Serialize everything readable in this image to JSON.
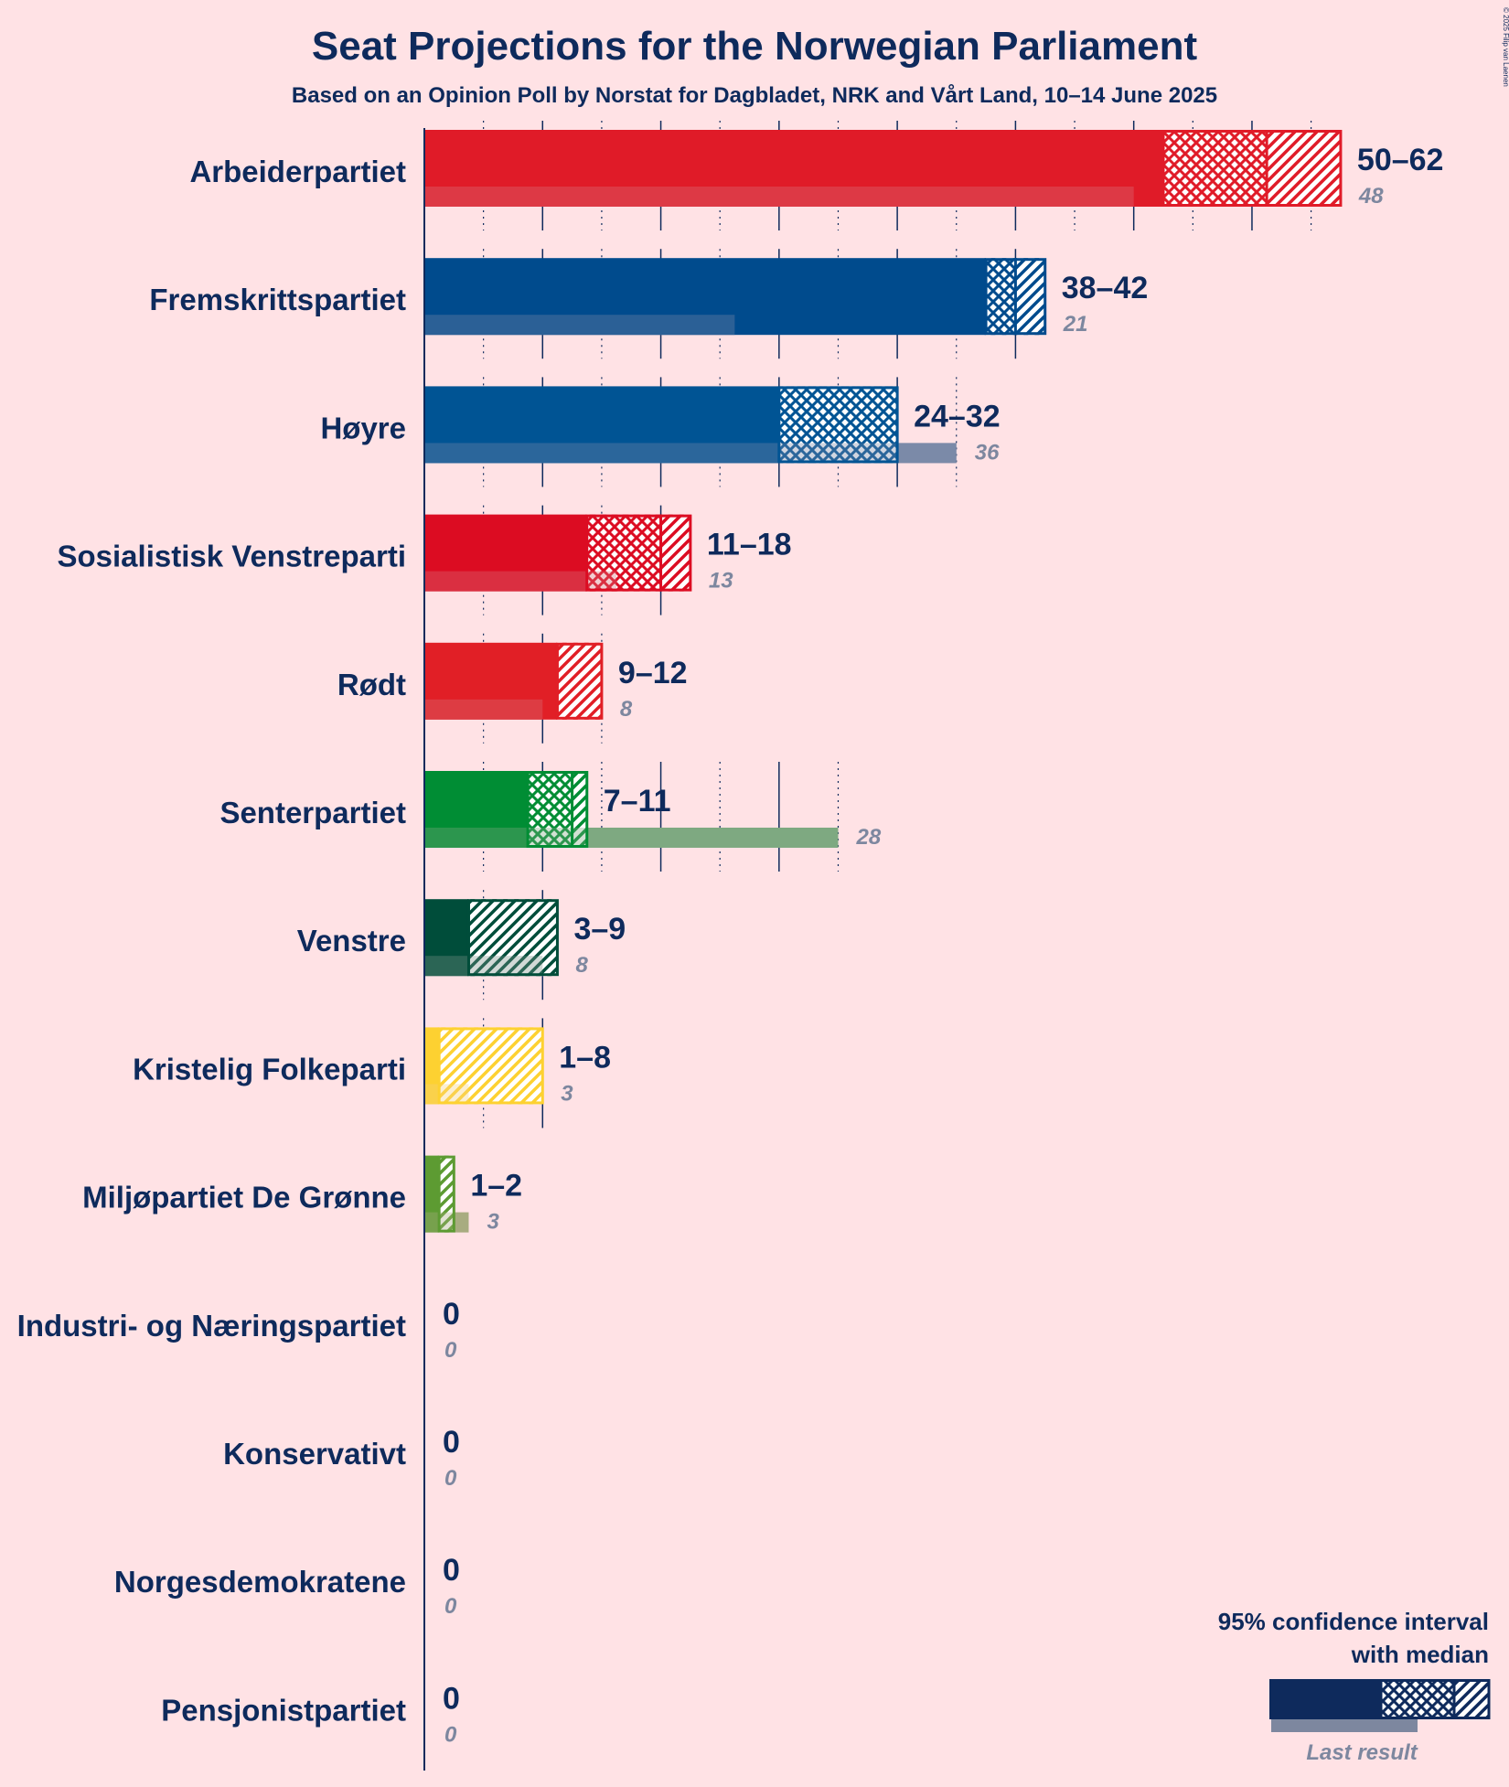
{
  "chart_data": {
    "type": "bar",
    "title": "Seat Projections for the Norwegian Parliament",
    "subtitle": "Based on an Opinion Poll by Norstat for Dagbladet, NRK and Vårt Land, 10–14 June 2025",
    "credit": "© 2025 Filip van Laenen",
    "x_unit": "seats",
    "xlim": [
      0,
      62
    ],
    "parties": [
      {
        "name": "Arbeiderpartiet",
        "color": "#e01b28",
        "last_color": "#d7747a",
        "low": 50,
        "median": 57,
        "high": 62,
        "range_label": "50–62",
        "last": 48,
        "last_label": "48"
      },
      {
        "name": "Fremskrittspartiet",
        "color": "#004b8d",
        "last_color": "#7b8aa8",
        "low": 38,
        "median": 40,
        "high": 42,
        "range_label": "38–42",
        "last": 21,
        "last_label": "21"
      },
      {
        "name": "Høyre",
        "color": "#005494",
        "last_color": "#7b8aa8",
        "low": 24,
        "median": 32,
        "high": 32,
        "range_label": "24–32",
        "last": 36,
        "last_label": "36"
      },
      {
        "name": "Sosialistisk Venstreparti",
        "color": "#dc0c22",
        "last_color": "#d7747a",
        "low": 11,
        "median": 16,
        "high": 18,
        "range_label": "11–18",
        "last": 13,
        "last_label": "13"
      },
      {
        "name": "Rødt",
        "color": "#e11f26",
        "last_color": "#d7747a",
        "low": 9,
        "median": 9,
        "high": 12,
        "range_label": "9–12",
        "last": 8,
        "last_label": "8"
      },
      {
        "name": "Senterpartiet",
        "color": "#008d34",
        "last_color": "#7fa981",
        "low": 7,
        "median": 10,
        "high": 11,
        "range_label": "7–11",
        "last": 28,
        "last_label": "28"
      },
      {
        "name": "Venstre",
        "color": "#004d3a",
        "last_color": "#7b9389",
        "low": 3,
        "median": 3,
        "high": 9,
        "range_label": "3–9",
        "last": 8,
        "last_label": "8"
      },
      {
        "name": "Kristelig Folkeparti",
        "color": "#fdd131",
        "last_color": "#f4d07e",
        "low": 1,
        "median": 1,
        "high": 8,
        "range_label": "1–8",
        "last": 3,
        "last_label": "3"
      },
      {
        "name": "Miljøpartiet De Grønne",
        "color": "#5d9b32",
        "last_color": "#a8ad80",
        "low": 1,
        "median": 1,
        "high": 2,
        "range_label": "1–2",
        "last": 3,
        "last_label": "3"
      },
      {
        "name": "Industri- og Næringspartiet",
        "color": "#0e2a5c",
        "last_color": "#7b8aa8",
        "low": 0,
        "median": 0,
        "high": 0,
        "range_label": "0",
        "last": 0,
        "last_label": "0"
      },
      {
        "name": "Konservativt",
        "color": "#0e2a5c",
        "last_color": "#7b8aa8",
        "low": 0,
        "median": 0,
        "high": 0,
        "range_label": "0",
        "last": 0,
        "last_label": "0"
      },
      {
        "name": "Norgesdemokratene",
        "color": "#0e2a5c",
        "last_color": "#7b8aa8",
        "low": 0,
        "median": 0,
        "high": 0,
        "range_label": "0",
        "last": 0,
        "last_label": "0"
      },
      {
        "name": "Pensjonistpartiet",
        "color": "#0e2a5c",
        "last_color": "#7b8aa8",
        "low": 0,
        "median": 0,
        "high": 0,
        "range_label": "0",
        "last": 0,
        "last_label": "0"
      }
    ],
    "legend": {
      "line1": "95% confidence interval",
      "line2": "with median",
      "last_result": "Last result"
    }
  }
}
